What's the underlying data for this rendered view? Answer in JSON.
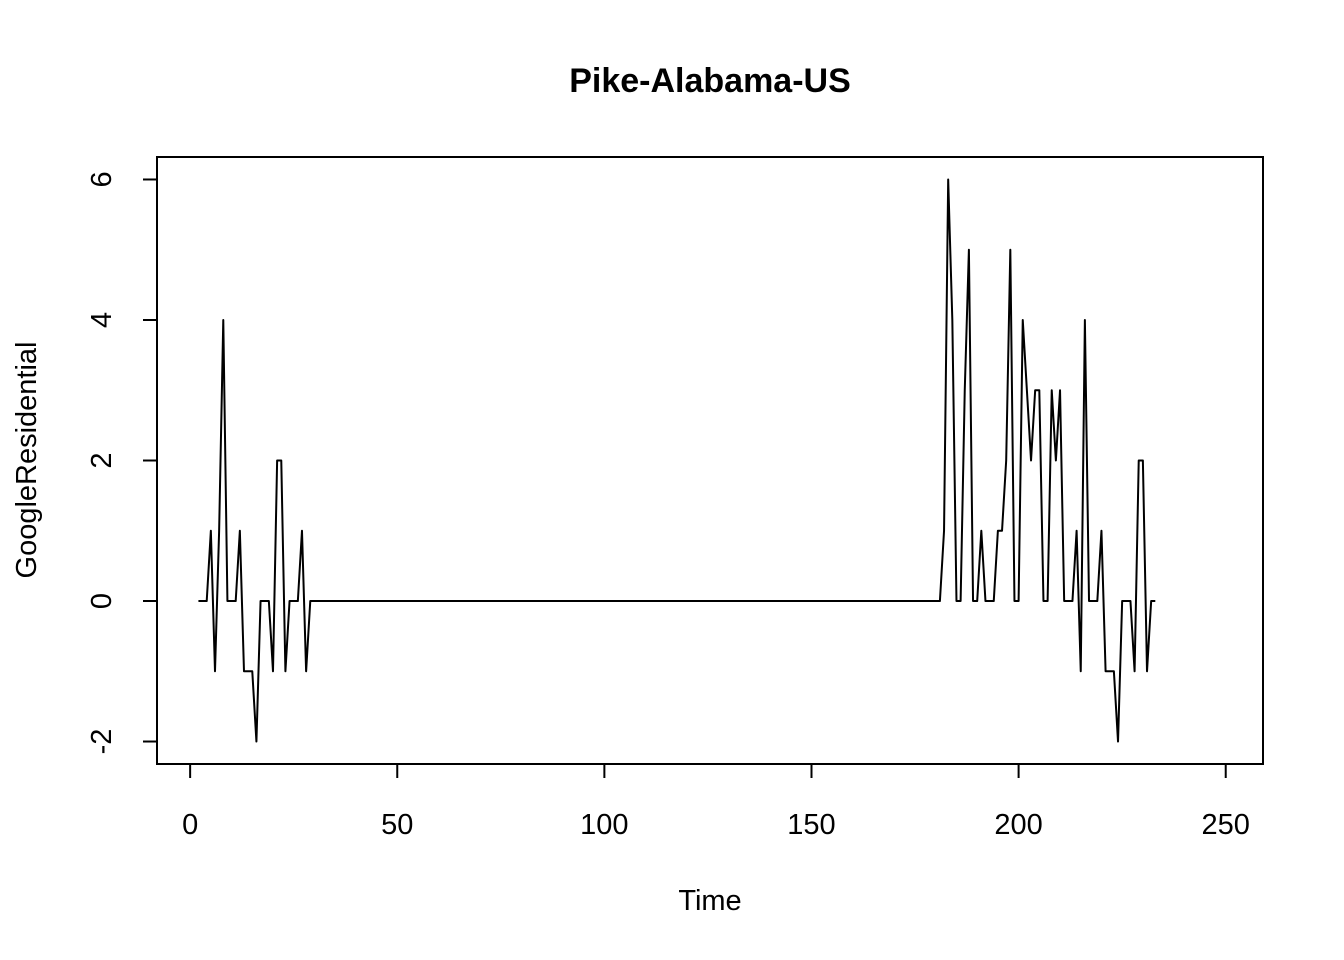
{
  "chart_data": {
    "type": "line",
    "title": "Pike-Alabama-US",
    "xlabel": "Time",
    "ylabel": "GoogleResidential",
    "xlim": [
      -8,
      259
    ],
    "ylim": [
      -2.32,
      6.32
    ],
    "x_ticks": [
      0,
      50,
      100,
      150,
      200,
      250
    ],
    "y_ticks": [
      -2,
      0,
      2,
      4,
      6
    ],
    "x_tick_labels": [
      "0",
      "50",
      "100",
      "150",
      "200",
      "250"
    ],
    "y_tick_labels": [
      "-2",
      "0",
      "2",
      "4",
      "6"
    ],
    "grid": false,
    "legend": "none",
    "line_color": "#000000",
    "series": [
      {
        "values": [
          0,
          0,
          0,
          1,
          -1,
          1,
          4,
          0,
          0,
          0,
          1,
          -1,
          -1,
          -1,
          -2,
          0,
          0,
          0,
          -1,
          2,
          2,
          -1,
          0,
          0,
          0,
          1,
          -1,
          0,
          0,
          0,
          0,
          0,
          0,
          0,
          0,
          0,
          0,
          0,
          0,
          0,
          0,
          0,
          0,
          0,
          0,
          0,
          0,
          0,
          0,
          0,
          0,
          0,
          0,
          0,
          0,
          0,
          0,
          0,
          0,
          0,
          0,
          0,
          0,
          0,
          0,
          0,
          0,
          0,
          0,
          0,
          0,
          0,
          0,
          0,
          0,
          0,
          0,
          0,
          0,
          0,
          0,
          0,
          0,
          0,
          0,
          0,
          0,
          0,
          0,
          0,
          0,
          0,
          0,
          0,
          0,
          0,
          0,
          0,
          0,
          0,
          0,
          0,
          0,
          0,
          0,
          0,
          0,
          0,
          0,
          0,
          0,
          0,
          0,
          0,
          0,
          0,
          0,
          0,
          0,
          0,
          0,
          0,
          0,
          0,
          0,
          0,
          0,
          0,
          0,
          0,
          0,
          0,
          0,
          0,
          0,
          0,
          0,
          0,
          0,
          0,
          0,
          0,
          0,
          0,
          0,
          0,
          0,
          0,
          0,
          0,
          0,
          0,
          0,
          0,
          0,
          0,
          0,
          0,
          0,
          0,
          0,
          0,
          0,
          0,
          0,
          0,
          0,
          0,
          0,
          0,
          0,
          0,
          0,
          0,
          0,
          0,
          0,
          0,
          0,
          0,
          1,
          6,
          4,
          0,
          0,
          3,
          5,
          0,
          0,
          1,
          0,
          0,
          0,
          1,
          1,
          2,
          5,
          0,
          0,
          4,
          3,
          2,
          3,
          3,
          0,
          0,
          3,
          2,
          3,
          0,
          0,
          0,
          1,
          -1,
          4,
          0,
          0,
          0,
          1,
          -1,
          -1,
          -1,
          -2,
          0,
          0,
          0,
          -1,
          2,
          2,
          -1,
          0,
          0
        ]
      }
    ]
  }
}
